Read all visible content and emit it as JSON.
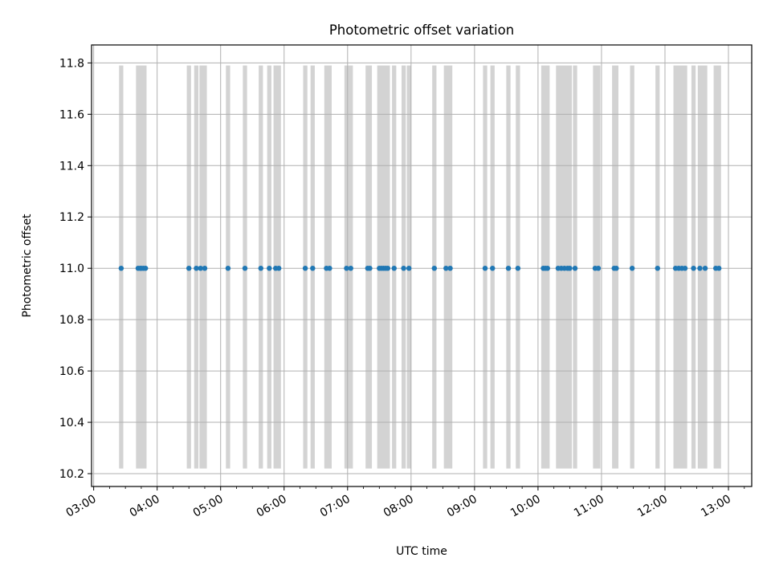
{
  "chart_data": {
    "type": "scatter",
    "title": "Photometric offset variation",
    "xlabel": "UTC time",
    "ylabel": "Photometric offset",
    "xlim": [
      "02:58",
      "13:22"
    ],
    "ylim": [
      10.15,
      11.87
    ],
    "x_ticks": [
      "03:00",
      "04:00",
      "05:00",
      "06:00",
      "07:00",
      "08:00",
      "09:00",
      "10:00",
      "11:00",
      "12:00",
      "13:00"
    ],
    "y_ticks": [
      10.2,
      10.4,
      10.6,
      10.8,
      11.0,
      11.2,
      11.4,
      11.6,
      11.8
    ],
    "grid": true,
    "marker_color": "#1f77b4",
    "band_color": "#d3d3d3",
    "band_range": [
      10.22,
      11.79
    ],
    "series": [
      {
        "x": [
          "03:26",
          "03:42",
          "03:44",
          "03:45",
          "03:47",
          "03:49",
          "04:30",
          "04:37",
          "04:41",
          "04:45",
          "05:07",
          "05:23",
          "05:38",
          "05:46",
          "05:52",
          "05:55",
          "06:20",
          "06:27",
          "06:40",
          "06:43",
          "06:59",
          "07:03",
          "07:19",
          "07:21",
          "07:30",
          "07:32",
          "07:34",
          "07:36",
          "07:38",
          "07:44",
          "07:53",
          "07:58",
          "08:22",
          "08:33",
          "08:37",
          "09:10",
          "09:17",
          "09:32",
          "09:41",
          "10:05",
          "10:07",
          "10:09",
          "10:19",
          "10:22",
          "10:25",
          "10:28",
          "10:30",
          "10:35",
          "10:54",
          "10:57",
          "11:12",
          "11:14",
          "11:29",
          "11:53",
          "12:10",
          "12:13",
          "12:16",
          "12:19",
          "12:27",
          "12:33",
          "12:38",
          "12:48",
          "12:51"
        ],
        "y": [
          11.0,
          11.0,
          11.0,
          11.0,
          11.0,
          11.0,
          11.0,
          11.0,
          11.0,
          11.0,
          11.0,
          11.0,
          11.0,
          11.0,
          11.0,
          11.0,
          11.0,
          11.0,
          11.0,
          11.0,
          11.0,
          11.0,
          11.0,
          11.0,
          11.0,
          11.0,
          11.0,
          11.0,
          11.0,
          11.0,
          11.0,
          11.0,
          11.0,
          11.0,
          11.0,
          11.0,
          11.0,
          11.0,
          11.0,
          11.0,
          11.0,
          11.0,
          11.0,
          11.0,
          11.0,
          11.0,
          11.0,
          11.0,
          11.0,
          11.0,
          11.0,
          11.0,
          11.0,
          11.0,
          11.0,
          11.0,
          11.0,
          11.0,
          11.0,
          11.0,
          11.0,
          11.0,
          11.0
        ]
      }
    ],
    "bands": [
      [
        "03:24",
        "03:28"
      ],
      [
        "03:40",
        "03:50"
      ],
      [
        "04:28",
        "04:32"
      ],
      [
        "04:35",
        "04:39"
      ],
      [
        "04:40",
        "04:47"
      ],
      [
        "05:05",
        "05:09"
      ],
      [
        "05:21",
        "05:25"
      ],
      [
        "05:36",
        "05:40"
      ],
      [
        "05:44",
        "05:48"
      ],
      [
        "05:50",
        "05:57"
      ],
      [
        "06:18",
        "06:22"
      ],
      [
        "06:25",
        "06:29"
      ],
      [
        "06:38",
        "06:45"
      ],
      [
        "06:57",
        "07:05"
      ],
      [
        "07:17",
        "07:23"
      ],
      [
        "07:28",
        "07:40"
      ],
      [
        "07:42",
        "07:46"
      ],
      [
        "07:51",
        "07:55"
      ],
      [
        "07:56",
        "08:00"
      ],
      [
        "08:20",
        "08:24"
      ],
      [
        "08:31",
        "08:39"
      ],
      [
        "09:08",
        "09:12"
      ],
      [
        "09:15",
        "09:19"
      ],
      [
        "09:30",
        "09:34"
      ],
      [
        "09:39",
        "09:43"
      ],
      [
        "10:03",
        "10:11"
      ],
      [
        "10:17",
        "10:32"
      ],
      [
        "10:33",
        "10:37"
      ],
      [
        "10:52",
        "10:59"
      ],
      [
        "11:10",
        "11:16"
      ],
      [
        "11:27",
        "11:31"
      ],
      [
        "11:51",
        "11:55"
      ],
      [
        "12:08",
        "12:21"
      ],
      [
        "12:25",
        "12:29"
      ],
      [
        "12:31",
        "12:40"
      ],
      [
        "12:46",
        "12:53"
      ]
    ]
  }
}
